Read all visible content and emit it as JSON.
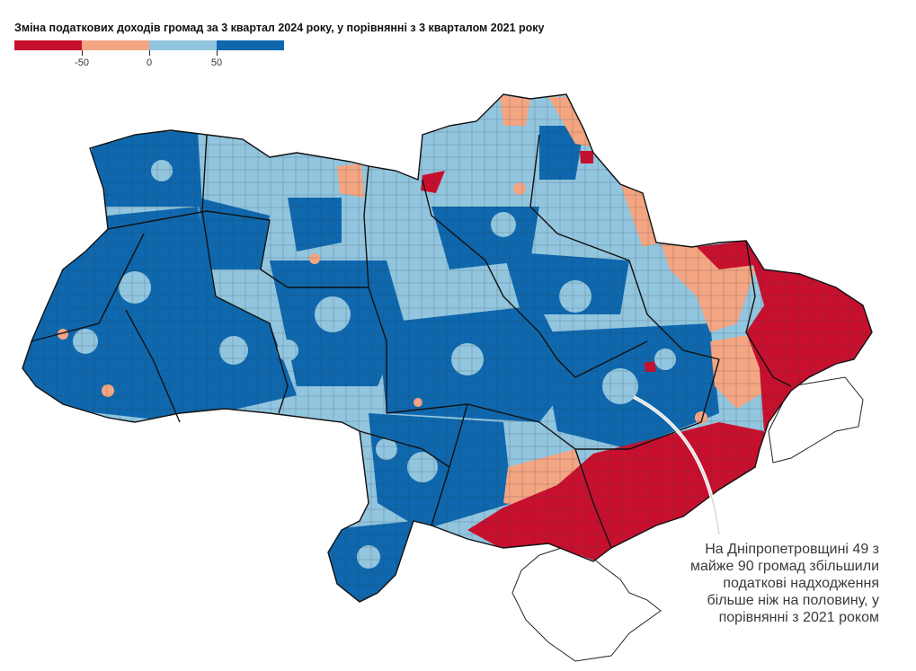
{
  "title": "Зміна податкових доходів громад за 3 квартал 2024 року, у порівнянні з 3 кварталом 2021 року",
  "legend": {
    "colors": [
      "#c8102e",
      "#f4a582",
      "#92c5de",
      "#0f68ad"
    ],
    "ticks": [
      "-50",
      "0",
      "50"
    ]
  },
  "colors": {
    "strong_decline": "#c8102e",
    "decline": "#f4a582",
    "growth": "#92c5de",
    "strong_growth": "#0f68ad",
    "no_data": "#ffffff",
    "border": "#222222"
  },
  "annotation": {
    "lines": [
      "На Дніпропетровщині 49 з",
      "майже 90 громад збільшили",
      "податкові надходження",
      "більше ніж на половину, у",
      "порівнянні з 2021 роком"
    ]
  }
}
